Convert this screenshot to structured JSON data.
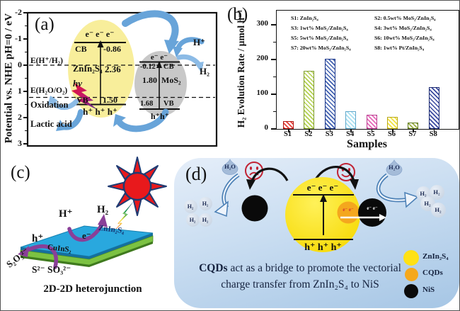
{
  "figure": {
    "panel_a": {
      "label": "(a)",
      "y_axis_label": "Potential vs. NHE  pH=0 / eV",
      "ticks": [
        "-2",
        "-1",
        "0",
        "1",
        "2",
        "3"
      ],
      "znin": {
        "electrons": "e⁻ e⁻ e⁻",
        "cb": "CB",
        "cb_value": "-0.86",
        "name": "ZnIn₂S₄",
        "gap": "2.36",
        "hv": "hν",
        "vb": "VB",
        "vb_value": "1.50",
        "holes": "h⁺ h⁺ h⁺"
      },
      "mos2": {
        "electrons": "e⁻ e⁻",
        "cb_value": "-0.12",
        "cb": "CB",
        "gap": "1.80",
        "name": "MoS₂",
        "vb_value": "1.68",
        "vb": "VB",
        "holes": "h⁺h⁺"
      },
      "h2_level": "E(H⁺/H₂)",
      "o2_level": "E(H₂O/O₂)",
      "oxidation": "Oxidation",
      "lactic": "Lactic acid",
      "h_plus": "H⁺",
      "h2": "H₂"
    },
    "panel_b": {
      "label": "(b)"
    },
    "panel_c": {
      "label": "(c)",
      "h_plus": "H⁺",
      "h2": "H₂",
      "electron": "e⁻",
      "hole": "h⁺",
      "top_material": "ZnIn₂S₄",
      "bottom_material": "CuInS₂",
      "s2o3": "S₂O₃²⁻",
      "s2_so3": "S²⁻ SO₃²⁻",
      "caption": "2D-2D heterojunction"
    },
    "panel_d": {
      "label": "(d)",
      "h2o": "H₂O",
      "h2": "H₂",
      "electrons": "e⁻ e⁻ e⁻",
      "holes": "h⁺ h⁺ h⁺",
      "cqd_electrons": "e⁻ e⁻",
      "nis_electrons": "e⁻ e⁻",
      "caption_bold": "CQDs",
      "caption_rest": " act as a bridge to promote the vectorial",
      "caption_line2": "charge transfer from ZnIn₂S₄ to NiS",
      "legend": [
        {
          "label": "ZnIn₂S₄",
          "color": "#ffe115"
        },
        {
          "label": "CQDs",
          "color": "#f5a81c"
        },
        {
          "label": "NiS",
          "color": "#0b0b0b"
        }
      ]
    }
  },
  "chart_data": {
    "type": "bar",
    "title": "",
    "xlabel": "Samples",
    "ylabel": "H₂ Evolution Rate / μmol h⁻¹",
    "categories": [
      "S1",
      "S2",
      "S3",
      "S4",
      "S5",
      "S6",
      "S7",
      "S8"
    ],
    "values": [
      22,
      167,
      202,
      52,
      40,
      34,
      18,
      120
    ],
    "yticks": [
      0,
      100,
      200,
      300
    ],
    "yticks_minor": [
      50,
      150,
      250
    ],
    "ylim": [
      0,
      340
    ],
    "grid": false,
    "legend_position": "upper-left-inside",
    "bar_colors": [
      "#e8403a",
      "#b3d04f",
      "#4060b0",
      "#a8dff0",
      "#e668b8",
      "#f2e23d",
      "#9aae42",
      "#3a4a9f"
    ],
    "bar_borders": [
      "#b01510",
      "#7f9c2e",
      "#1f3a8c",
      "#5fa8cc",
      "#bb3f92",
      "#b8a818",
      "#5f7a22",
      "#1c2a70"
    ],
    "legend": [
      "S1: ZnIn₂S₄",
      "S2: 0.5wt% MoS₂/ZnIn₂S₄",
      "S3: 1wt% MoS₂/ZnIn₂S₄",
      "S4: 3wt% MoS₂/ZnIn₂S₄",
      "S5: 5wt% MoS₂/ZnIn₂S₄",
      "S6: 10wt% MoS₂/ZnIn₂S₄",
      "S7: 20wt% MoS₂/ZnIn₂S₄",
      "S8: 1wt% Pt/ZnIn₂S₄"
    ]
  }
}
